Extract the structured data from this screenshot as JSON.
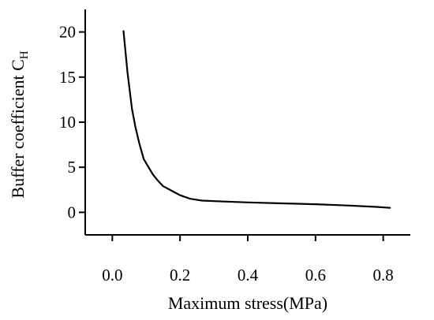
{
  "chart_data": {
    "type": "line",
    "title": "",
    "xlabel": "Maximum stress(MPa)",
    "ylabel": "Buffer coefficient C",
    "ylabel_subscript": "H",
    "xlim": [
      -0.08,
      0.88
    ],
    "ylim": [
      -2.5,
      22.5
    ],
    "x_ticks": [
      0.0,
      0.2,
      0.4,
      0.6,
      0.8
    ],
    "x_tick_labels": [
      "0.0",
      "0.2",
      "0.4",
      "0.6",
      "0.8"
    ],
    "y_ticks": [
      0,
      5,
      10,
      15,
      20
    ],
    "y_tick_labels": [
      "0",
      "5",
      "10",
      "15",
      "20"
    ],
    "grid": false,
    "series": [
      {
        "color": "#000000",
        "x": [
          0.033,
          0.045,
          0.058,
          0.068,
          0.08,
          0.093,
          0.107,
          0.12,
          0.135,
          0.15,
          0.18,
          0.2,
          0.23,
          0.265,
          0.33,
          0.4,
          0.5,
          0.6,
          0.7,
          0.78,
          0.82
        ],
        "y": [
          20.1,
          15.5,
          11.5,
          9.5,
          7.6,
          5.9,
          5.0,
          4.2,
          3.5,
          2.9,
          2.3,
          1.9,
          1.5,
          1.3,
          1.2,
          1.1,
          1.0,
          0.9,
          0.75,
          0.6,
          0.5
        ]
      }
    ]
  }
}
